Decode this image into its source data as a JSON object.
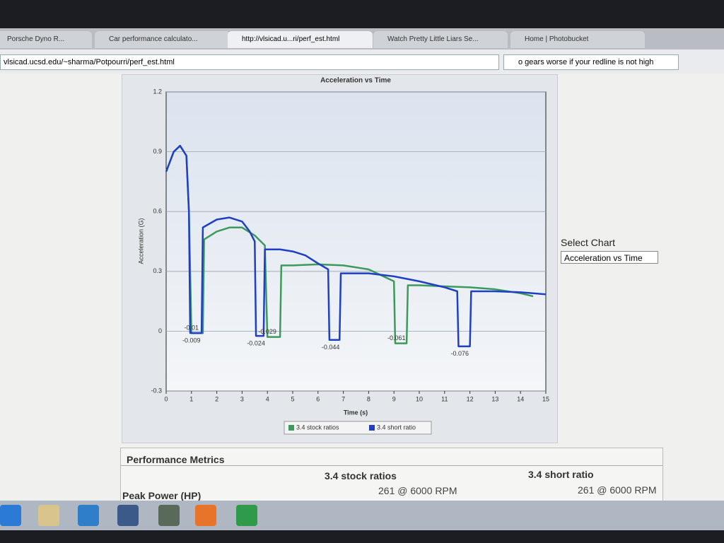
{
  "browser": {
    "tabs": [
      "Porsche Dyno R...",
      "Car performance calculato...",
      "http://vlsicad.u...ri/perf_est.html",
      "Watch Pretty Little Liars Se...",
      "Home | Photobucket"
    ],
    "url": "vlsicad.ucsd.edu/~sharma/Potpourri/perf_est.html",
    "search": "o gears worse if your redline is not high"
  },
  "chart_data": {
    "type": "line",
    "title": "Acceleration vs Time",
    "x_label": "Time (s)",
    "y_label": "Acceleration (G)",
    "xlim": [
      0,
      15
    ],
    "xticks": [
      0,
      1,
      2,
      3,
      4,
      5,
      6,
      7,
      8,
      9,
      10,
      11,
      12,
      13,
      14,
      15
    ],
    "ylim": [
      -0.3,
      1.2
    ],
    "yticks": [
      -0.3,
      0,
      0.3,
      0.6,
      0.9,
      1.2
    ],
    "grid": true,
    "series": [
      {
        "name": "3.4 stock ratios",
        "color": "#3d9a5c",
        "x": [
          0,
          0.3,
          0.55,
          0.8,
          0.9,
          1.0,
          1.45,
          1.5,
          2,
          2.5,
          3,
          3.5,
          3.9,
          4.0,
          4.5,
          4.55,
          5,
          6,
          7,
          8,
          8.5,
          9,
          9.05,
          9.5,
          9.55,
          10,
          11,
          12,
          13,
          14,
          14.5
        ],
        "values": [
          0.8,
          0.9,
          0.93,
          0.88,
          0.6,
          -0.01,
          -0.01,
          0.46,
          0.5,
          0.52,
          0.52,
          0.48,
          0.43,
          -0.029,
          -0.029,
          0.33,
          0.33,
          0.335,
          0.33,
          0.31,
          0.28,
          0.25,
          -0.061,
          -0.061,
          0.23,
          0.23,
          0.225,
          0.22,
          0.21,
          0.19,
          0.175
        ]
      },
      {
        "name": "3.4 short ratio",
        "color": "#1f3fc4",
        "x": [
          0,
          0.3,
          0.55,
          0.8,
          0.9,
          0.95,
          1.4,
          1.45,
          2,
          2.5,
          3,
          3.3,
          3.5,
          3.55,
          3.85,
          3.9,
          4.5,
          5,
          5.5,
          6,
          6.4,
          6.45,
          6.85,
          6.9,
          8,
          9,
          10,
          11,
          11.5,
          11.55,
          12,
          12.05,
          13,
          14,
          15
        ],
        "values": [
          0.8,
          0.9,
          0.93,
          0.88,
          0.6,
          -0.009,
          -0.009,
          0.52,
          0.56,
          0.57,
          0.55,
          0.5,
          0.45,
          -0.024,
          -0.024,
          0.41,
          0.41,
          0.4,
          0.38,
          0.34,
          0.31,
          -0.044,
          -0.044,
          0.29,
          0.29,
          0.275,
          0.25,
          0.22,
          0.2,
          -0.076,
          -0.076,
          0.2,
          0.2,
          0.195,
          0.185
        ]
      }
    ],
    "annotations": [
      {
        "text": "-0.01",
        "x": 1.0,
        "y": -0.01,
        "pos": "above"
      },
      {
        "text": "-0.009",
        "x": 1.0,
        "y": -0.009,
        "pos": "below"
      },
      {
        "text": "-0.024",
        "x": 3.55,
        "y": -0.024,
        "pos": "below"
      },
      {
        "text": "-0.029",
        "x": 4.0,
        "y": -0.029,
        "pos": "above"
      },
      {
        "text": "-0.044",
        "x": 6.5,
        "y": -0.044,
        "pos": "below"
      },
      {
        "text": "-0.061",
        "x": 9.1,
        "y": -0.061,
        "pos": "above"
      },
      {
        "text": "-0.076",
        "x": 11.6,
        "y": -0.076,
        "pos": "below"
      }
    ]
  },
  "chart_selector": {
    "label": "Select Chart",
    "selected": "Acceleration vs Time"
  },
  "metrics": {
    "title": "Performance Metrics",
    "columns": [
      "3.4 stock ratios",
      "3.4 short ratio"
    ],
    "rows": [
      {
        "label": "Peak Power (HP)",
        "values": [
          "261 @ 6000 RPM",
          "261 @ 6000 RPM"
        ]
      }
    ]
  }
}
